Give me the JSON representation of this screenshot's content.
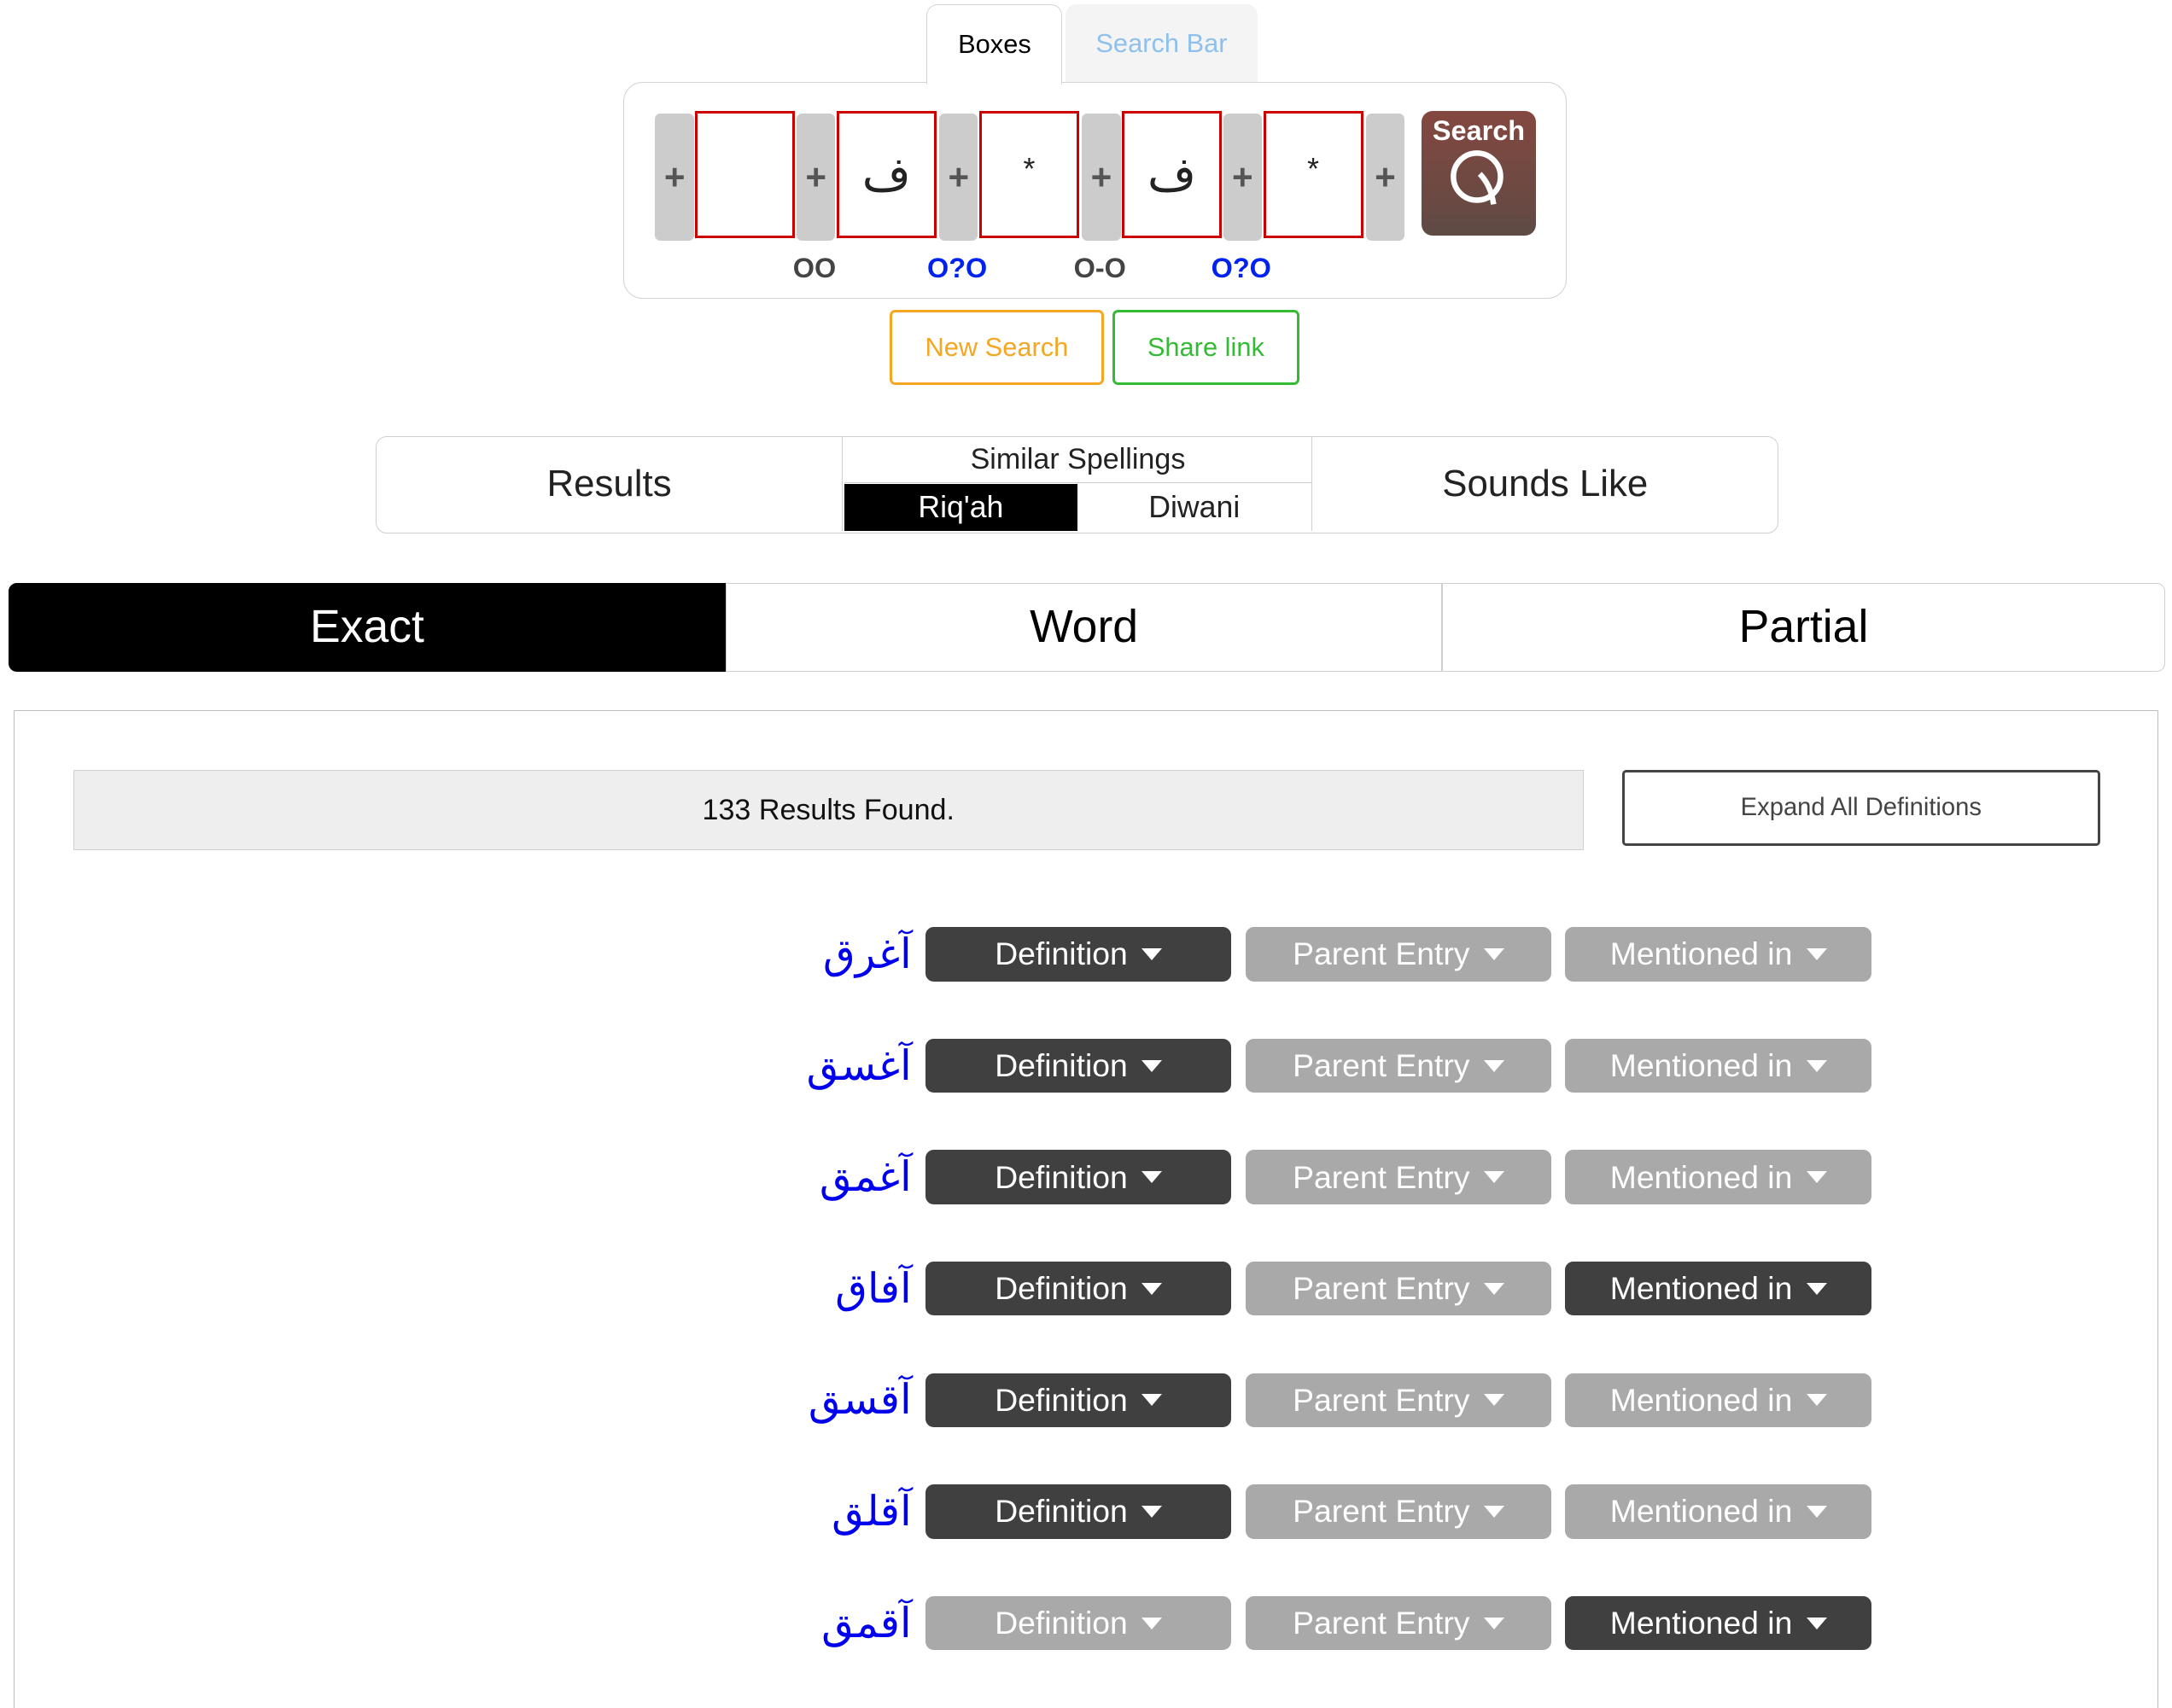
{
  "tabs": [
    {
      "label": "Boxes",
      "active": true
    },
    {
      "label": "Search Bar",
      "active": false
    }
  ],
  "boxes": [
    "",
    "ف",
    "*",
    "ف",
    "*"
  ],
  "plus_label": "+",
  "links": [
    {
      "icon": "link-open-icon",
      "glyph": "OO",
      "color": "#444444"
    },
    {
      "icon": "link-optional-icon",
      "glyph": "O?O",
      "color": "#0022ee"
    },
    {
      "icon": "link-chain-icon",
      "glyph": "O-O",
      "color": "#444444"
    },
    {
      "icon": "link-optional-icon",
      "glyph": "O?O",
      "color": "#0022ee"
    }
  ],
  "search_button": {
    "label": "Search",
    "icon": "magnifier-q-icon"
  },
  "actions": {
    "new_search": "New Search",
    "share_link": "Share link"
  },
  "views": {
    "results": "Results",
    "similar": "Similar Spellings",
    "riqah": "Riq'ah",
    "diwani": "Diwani",
    "sounds_like": "Sounds Like"
  },
  "modes": [
    {
      "label": "Exact",
      "active": true
    },
    {
      "label": "Word",
      "active": false
    },
    {
      "label": "Partial",
      "active": false
    }
  ],
  "results_count": "133 Results Found.",
  "expand_all": "Expand All Definitions",
  "button_labels": {
    "definition": "Definition",
    "parent": "Parent Entry",
    "mentioned": "Mentioned in"
  },
  "results": [
    {
      "word": "آغرق",
      "definition": true,
      "parent": false,
      "mentioned": false
    },
    {
      "word": "آغسق",
      "definition": true,
      "parent": false,
      "mentioned": false
    },
    {
      "word": "آغمق",
      "definition": true,
      "parent": false,
      "mentioned": false
    },
    {
      "word": "آفاق",
      "definition": true,
      "parent": false,
      "mentioned": true
    },
    {
      "word": "آقسق",
      "definition": true,
      "parent": false,
      "mentioned": false
    },
    {
      "word": "آقلق",
      "definition": true,
      "parent": false,
      "mentioned": false
    },
    {
      "word": "آقمق",
      "definition": false,
      "parent": false,
      "mentioned": true
    }
  ],
  "colors": {
    "enabled": "#404040",
    "disabled": "#a9a9a9",
    "word": "#0000ee",
    "box_border": "#cc0000",
    "new_search": "#f5a623",
    "share": "#33bb33"
  }
}
